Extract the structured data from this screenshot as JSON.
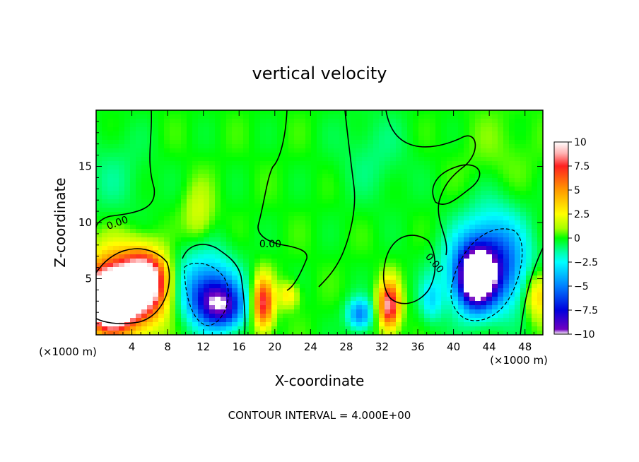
{
  "chart_data": {
    "type": "heatmap",
    "title": "vertical velocity",
    "xlabel": "X-coordinate",
    "ylabel": "Z-coordinate",
    "x_unit": "(×1000 m)",
    "z_unit": "(×1000 m)",
    "xlim": [
      0,
      50
    ],
    "ylim": [
      0,
      20
    ],
    "x_ticks": [
      "4",
      "8",
      "12",
      "16",
      "20",
      "24",
      "28",
      "32",
      "36",
      "40",
      "44",
      "48"
    ],
    "y_ticks": [
      "5",
      "10",
      "15"
    ],
    "contour_labels": [
      "0.00",
      "0.00",
      "0.00"
    ],
    "contour_interval_text": "CONTOUR INTERVAL = 4.000E+00",
    "colorbar": {
      "range": [
        -10,
        10
      ],
      "ticks": [
        "10",
        "7.5",
        "5",
        "2.5",
        "0",
        "−2.5",
        "−5",
        "−7.5",
        "−10"
      ],
      "stops": [
        {
          "value": 10,
          "color": "#ffffff"
        },
        {
          "value": 8.8,
          "color": "#ffb0b0"
        },
        {
          "value": 7.5,
          "color": "#ff2020"
        },
        {
          "value": 5,
          "color": "#ff9a00"
        },
        {
          "value": 2.5,
          "color": "#ffff00"
        },
        {
          "value": 1.0,
          "color": "#a6ff00"
        },
        {
          "value": 0,
          "color": "#00ff00"
        },
        {
          "value": -1.5,
          "color": "#00ffaa"
        },
        {
          "value": -2.5,
          "color": "#00ffff"
        },
        {
          "value": -5,
          "color": "#0080ff"
        },
        {
          "value": -7.5,
          "color": "#0000dd"
        },
        {
          "value": -9.5,
          "color": "#7000c0"
        },
        {
          "value": -10,
          "color": "#ffffff"
        }
      ]
    },
    "features": [
      {
        "x": 1.5,
        "z": 3.0,
        "value": 16,
        "sx": 1.5,
        "sz": 1.5
      },
      {
        "x": 2.5,
        "z": 4.0,
        "value": 8,
        "sx": 3.0,
        "sz": 2.5
      },
      {
        "x": 5.5,
        "z": 5.0,
        "value": 8,
        "sx": 1.6,
        "sz": 1.6
      },
      {
        "x": 4.5,
        "z": 3.5,
        "value": 4,
        "sx": 2.5,
        "sz": 2.0
      },
      {
        "x": 12.0,
        "z": 4.5,
        "value": -4,
        "sx": 2.5,
        "sz": 2.5
      },
      {
        "x": 13.5,
        "z": 3.0,
        "value": -6,
        "sx": 2.0,
        "sz": 1.5
      },
      {
        "x": 14.5,
        "z": 2.0,
        "value": -3,
        "sx": 1.5,
        "sz": 1.2
      },
      {
        "x": 18.7,
        "z": 2.8,
        "value": 8,
        "sx": 0.8,
        "sz": 1.6
      },
      {
        "x": 21.5,
        "z": 3.5,
        "value": 3,
        "sx": 0.8,
        "sz": 0.8
      },
      {
        "x": 29.5,
        "z": 1.8,
        "value": -5,
        "sx": 1.0,
        "sz": 1.0
      },
      {
        "x": 32.8,
        "z": 2.6,
        "value": 9,
        "sx": 0.8,
        "sz": 1.5
      },
      {
        "x": 37.5,
        "z": 3.0,
        "value": -2.5,
        "sx": 0.9,
        "sz": 1.4
      },
      {
        "x": 42.5,
        "z": 5.0,
        "value": -10,
        "sx": 1.3,
        "sz": 1.7
      },
      {
        "x": 43.5,
        "z": 5.5,
        "value": -6,
        "sx": 3.0,
        "sz": 2.5
      },
      {
        "x": 44.5,
        "z": 8.0,
        "value": -3,
        "sx": 2.5,
        "sz": 3.0
      },
      {
        "x": 49.5,
        "z": 3.5,
        "value": 4,
        "sx": 1.0,
        "sz": 1.5
      },
      {
        "x": 11.5,
        "z": 10.5,
        "value": 2,
        "sx": 1.2,
        "sz": 2.0
      },
      {
        "x": 2.0,
        "z": 14.0,
        "value": -1,
        "sx": 3.0,
        "sz": 3.0
      },
      {
        "x": 31.0,
        "z": 16.0,
        "value": -1,
        "sx": 3.0,
        "sz": 3.0
      },
      {
        "x": 45.0,
        "z": 16.0,
        "value": 0.6,
        "sx": 3.0,
        "sz": 3.0
      }
    ]
  }
}
